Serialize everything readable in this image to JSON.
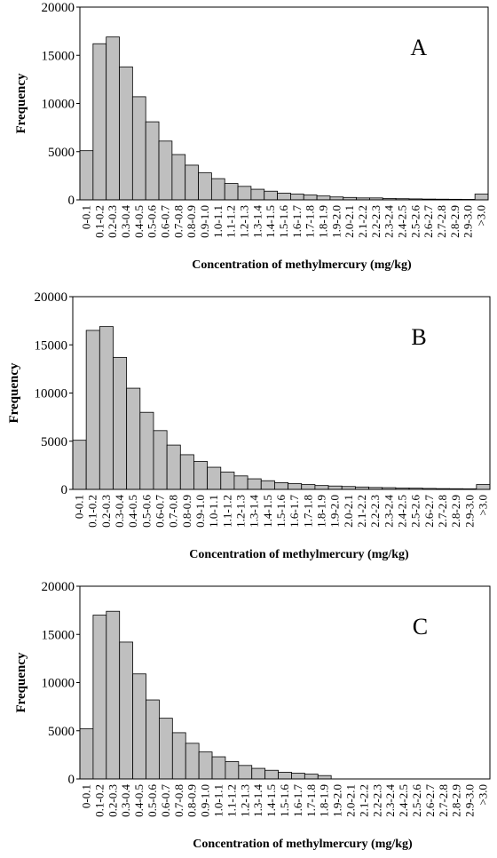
{
  "chart_data": [
    {
      "type": "bar",
      "annotation": "A",
      "xlabel": "Concentration of methylmercury (mg/kg)",
      "ylabel": "Frequency",
      "categories": [
        "0-0.1",
        "0.1-0.2",
        "0.2-0.3",
        "0.3-0.4",
        "0.4-0.5",
        "0.5-0.6",
        "0.6-0.7",
        "0.7-0.8",
        "0.8-0.9",
        "0.9-1.0",
        "1.0-1.1",
        "1.1-1.2",
        "1.2-1.3",
        "1.3-1.4",
        "1.4-1.5",
        "1.5-1.6",
        "1.6-1.7",
        "1.7-1.8",
        "1.8-1.9",
        "1.9-2.0",
        "2.0-2.1",
        "2.1-2.2",
        "2.2-2.3",
        "2.3-2.4",
        "2.4-2.5",
        "2.5-2.6",
        "2.6-2.7",
        "2.7-2.8",
        "2.8-2.9",
        "2.9-3.0",
        ">3.0"
      ],
      "values": [
        5100,
        16200,
        16900,
        13800,
        10700,
        8100,
        6100,
        4700,
        3600,
        2800,
        2200,
        1700,
        1400,
        1100,
        900,
        700,
        600,
        500,
        400,
        300,
        250,
        200,
        200,
        150,
        120,
        100,
        80,
        70,
        60,
        50,
        600
      ],
      "color": "#bfbfbf",
      "ylim": [
        0,
        20000
      ],
      "yticks": [
        0,
        5000,
        10000,
        15000,
        20000
      ]
    },
    {
      "type": "bar",
      "annotation": "B",
      "xlabel": "Concentration of methylmercury (mg/kg)",
      "ylabel": "Frequency",
      "categories": [
        "0-0.1",
        "0.1-0.2",
        "0.2-0.3",
        "0.3-0.4",
        "0.4-0.5",
        "0.5-0.6",
        "0.6-0.7",
        "0.7-0.8",
        "0.8-0.9",
        "0.9-1.0",
        "1.0-1.1",
        "1.1-1.2",
        "1.2-1.3",
        "1.3-1.4",
        "1.4-1.5",
        "1.5-1.6",
        "1.6-1.7",
        "1.7-1.8",
        "1.8-1.9",
        "1.9-2.0",
        "2.0-2.1",
        "2.1-2.2",
        "2.2-2.3",
        "2.3-2.4",
        "2.4-2.5",
        "2.5-2.6",
        "2.6-2.7",
        "2.7-2.8",
        "2.8-2.9",
        "2.9-3.0",
        ">3.0"
      ],
      "values": [
        5100,
        16500,
        16900,
        13700,
        10500,
        8000,
        6100,
        4600,
        3600,
        2900,
        2300,
        1800,
        1400,
        1100,
        900,
        700,
        600,
        500,
        400,
        350,
        300,
        250,
        200,
        180,
        150,
        130,
        100,
        80,
        70,
        60,
        500
      ],
      "color": "#bfbfbf",
      "ylim": [
        0,
        20000
      ],
      "yticks": [
        0,
        5000,
        10000,
        15000,
        20000
      ]
    },
    {
      "type": "bar",
      "annotation": "C",
      "xlabel": "Concentration of methylmercury (mg/kg)",
      "ylabel": "Frequency",
      "categories": [
        "0-0.1",
        "0.1-0.2",
        "0.2-0.3",
        "0.3-0.4",
        "0.4-0.5",
        "0.5-0.6",
        "0.6-0.7",
        "0.7-0.8",
        "0.8-0.9",
        "0.9-1.0",
        "1.0-1.1",
        "1.1-1.2",
        "1.2-1.3",
        "1.3-1.4",
        "1.4-1.5",
        "1.5-1.6",
        "1.6-1.7",
        "1.7-1.8",
        "1.8-1.9",
        "1.9-2.0",
        "2.0-2.1",
        "2.1-2.2",
        "2.2-2.3",
        "2.3-2.4",
        "2.4-2.5",
        "2.5-2.6",
        "2.6-2.7",
        "2.7-2.8",
        "2.8-2.9",
        "2.9-3.0",
        ">3.0"
      ],
      "values": [
        5200,
        17000,
        17400,
        14200,
        10900,
        8200,
        6300,
        4800,
        3700,
        2800,
        2300,
        1800,
        1400,
        1100,
        900,
        700,
        600,
        500,
        350,
        0,
        0,
        0,
        0,
        0,
        0,
        0,
        0,
        0,
        0,
        0,
        0
      ],
      "color": "#bfbfbf",
      "ylim": [
        0,
        20000
      ],
      "yticks": [
        0,
        5000,
        10000,
        15000,
        20000
      ]
    }
  ]
}
